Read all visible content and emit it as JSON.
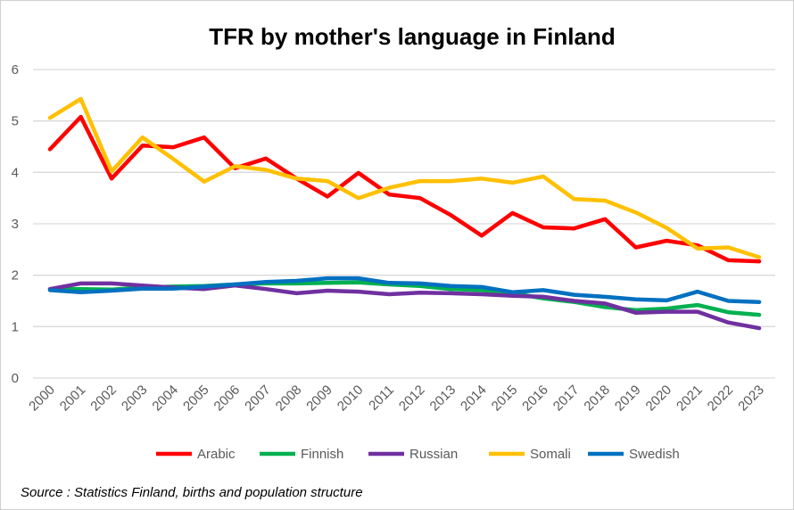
{
  "chart_data": {
    "type": "line",
    "title": "TFR by mother's language in Finland",
    "xlabel": "",
    "ylabel": "",
    "ylim": [
      0,
      6
    ],
    "yticks": [
      "0",
      "1",
      "2",
      "3",
      "4",
      "5",
      "6"
    ],
    "grid": true,
    "legend_position": "bottom",
    "x": [
      "2000",
      "2001",
      "2002",
      "2003",
      "2004",
      "2005",
      "2006",
      "2007",
      "2008",
      "2009",
      "2010",
      "2011",
      "2012",
      "2013",
      "2014",
      "2015",
      "2016",
      "2017",
      "2018",
      "2019",
      "2020",
      "2021",
      "2022",
      "2023"
    ],
    "series": [
      {
        "name": "Arabic",
        "color": "#ff0000",
        "values": [
          4.45,
          5.08,
          3.88,
          4.52,
          4.49,
          4.68,
          4.08,
          4.27,
          3.88,
          3.53,
          3.99,
          3.57,
          3.5,
          3.17,
          2.77,
          3.21,
          2.93,
          2.91,
          3.09,
          2.54,
          2.67,
          2.58,
          2.29,
          2.27
        ]
      },
      {
        "name": "Finnish",
        "color": "#00b050",
        "values": [
          1.73,
          1.73,
          1.72,
          1.76,
          1.78,
          1.79,
          1.82,
          1.84,
          1.84,
          1.85,
          1.86,
          1.82,
          1.79,
          1.73,
          1.71,
          1.65,
          1.55,
          1.48,
          1.38,
          1.32,
          1.35,
          1.42,
          1.28,
          1.23
        ]
      },
      {
        "name": "Russian",
        "color": "#7030a0",
        "values": [
          1.73,
          1.84,
          1.84,
          1.8,
          1.76,
          1.73,
          1.8,
          1.73,
          1.65,
          1.7,
          1.68,
          1.63,
          1.66,
          1.65,
          1.63,
          1.6,
          1.58,
          1.5,
          1.45,
          1.27,
          1.29,
          1.29,
          1.08,
          0.97
        ]
      },
      {
        "name": "Somali",
        "color": "#ffc000",
        "values": [
          5.06,
          5.43,
          4.02,
          4.68,
          4.26,
          3.82,
          4.12,
          4.05,
          3.88,
          3.83,
          3.5,
          3.7,
          3.83,
          3.83,
          3.88,
          3.8,
          3.92,
          3.48,
          3.45,
          3.22,
          2.92,
          2.52,
          2.54,
          2.35
        ]
      },
      {
        "name": "Swedish",
        "color": "#0070c0",
        "values": [
          1.71,
          1.67,
          1.7,
          1.74,
          1.74,
          1.78,
          1.82,
          1.87,
          1.89,
          1.94,
          1.94,
          1.85,
          1.84,
          1.79,
          1.77,
          1.67,
          1.71,
          1.62,
          1.58,
          1.53,
          1.51,
          1.68,
          1.5,
          1.48
        ]
      }
    ],
    "annotations": [
      "Source : Statistics Finland, births and population structure"
    ]
  }
}
